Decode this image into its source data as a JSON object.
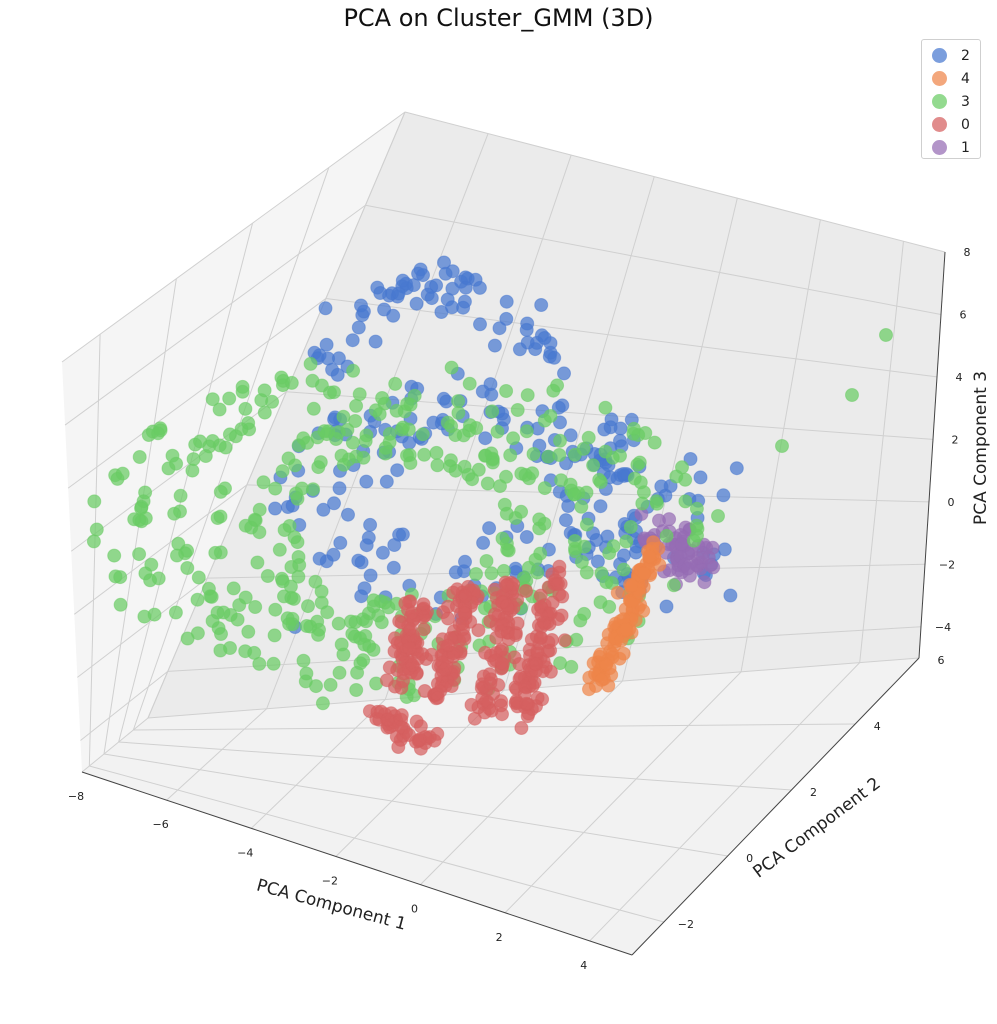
{
  "chart_data": {
    "type": "scatter",
    "title": "PCA on Cluster_GMM (3D)",
    "xlabel": "PCA Component 1",
    "ylabel": "PCA Component 2",
    "zlabel": "PCA Component 3",
    "xlim": [
      -8,
      5
    ],
    "ylim": [
      -3,
      6
    ],
    "zlim": [
      -5,
      8
    ],
    "xticks": [
      "−8",
      "−6",
      "−4",
      "−2",
      "0",
      "2",
      "4"
    ],
    "yticks": [
      "−2",
      "0",
      "2",
      "4",
      "6"
    ],
    "zticks": [
      "−4",
      "−2",
      "0",
      "2",
      "4",
      "6",
      "8"
    ],
    "legend": [
      "2",
      "4",
      "3",
      "0",
      "1"
    ],
    "legend_position": "top-right",
    "grid": true,
    "series": [
      {
        "name": "2",
        "color": "#4878d0"
      },
      {
        "name": "4",
        "color": "#ee854a"
      },
      {
        "name": "3",
        "color": "#6acc64"
      },
      {
        "name": "0",
        "color": "#d65f5f"
      },
      {
        "name": "1",
        "color": "#956cb4"
      }
    ]
  }
}
